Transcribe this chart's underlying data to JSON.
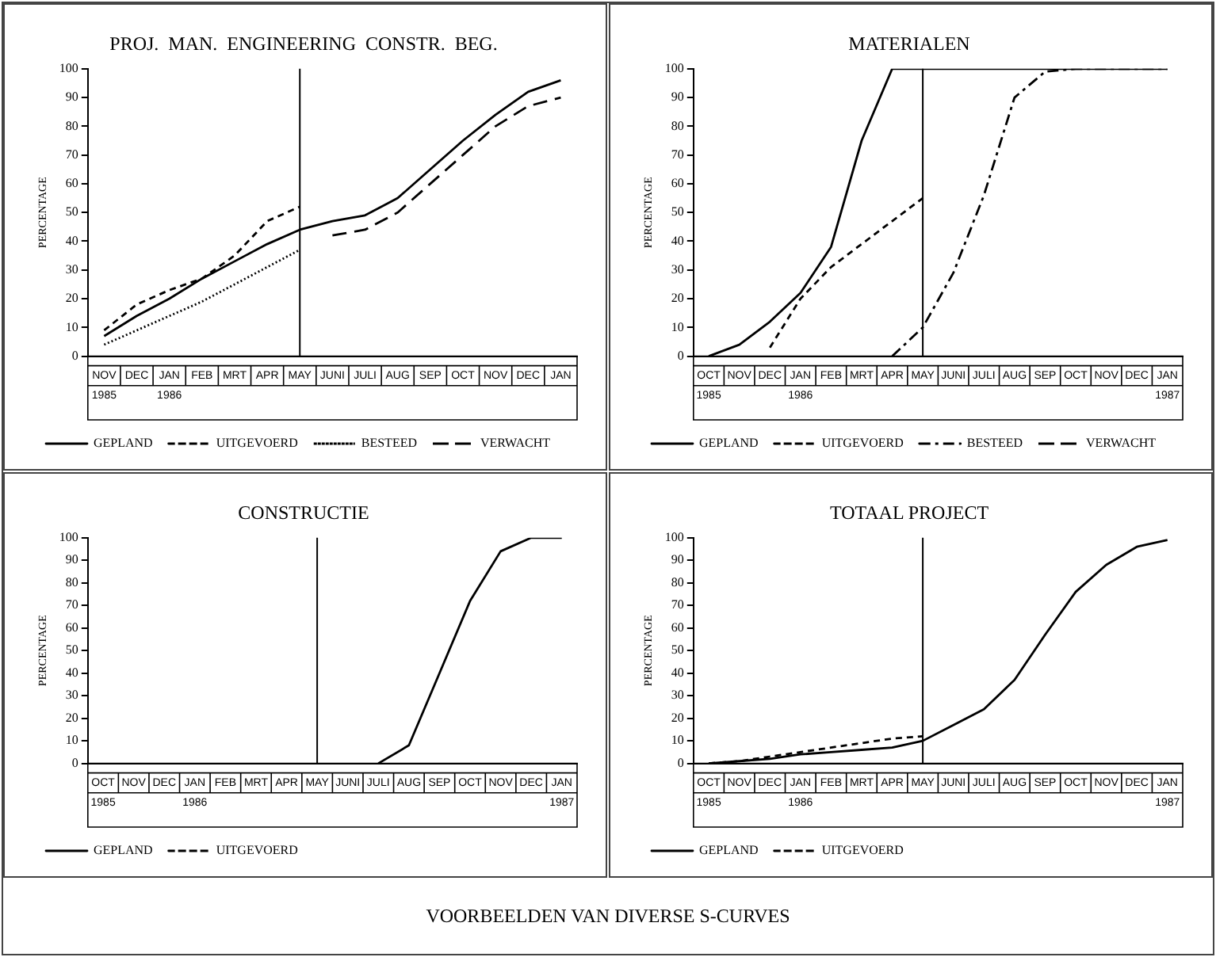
{
  "chart_data": [
    {
      "type": "line",
      "title": "PROJ.  MAN.  ENGINEERING  CONSTR.  BEG.",
      "ylabel": "PERCENTAGE",
      "categories": [
        "NOV\n1985",
        "DEC",
        "JAN\n1986",
        "FEB",
        "MRT",
        "APR",
        "MAY",
        "JUNI",
        "JULI",
        "AUG",
        "SEP",
        "OCT",
        "NOV",
        "DEC",
        "JAN"
      ],
      "ylim": [
        0,
        100
      ],
      "yticks": [
        0,
        10,
        20,
        30,
        40,
        50,
        60,
        70,
        80,
        90,
        100
      ],
      "grid": false,
      "legend": "bottom left",
      "marker": "none",
      "ref_lines": [
        {
          "axis": "x",
          "value": "MAY"
        }
      ],
      "series": [
        {
          "name": "GEPLAND",
          "color": "#000000",
          "line_style": "solid",
          "values": [
            7,
            14,
            20,
            27,
            33,
            39,
            44,
            47,
            49,
            55,
            65,
            75,
            84,
            92,
            96
          ]
        },
        {
          "name": "UITGEVOERD",
          "color": "#000000",
          "line_style": "dashed",
          "values": [
            9,
            18,
            23,
            27,
            35,
            47,
            52,
            null,
            null,
            null,
            null,
            null,
            null,
            null,
            null
          ]
        },
        {
          "name": "BESTEED",
          "color": "#000000",
          "line_style": "dotted",
          "values": [
            4,
            9,
            14,
            19,
            25,
            31,
            37,
            null,
            null,
            null,
            null,
            null,
            null,
            null,
            null
          ]
        },
        {
          "name": "VERWACHT",
          "color": "#000000",
          "line_style": "longdash",
          "values": [
            null,
            null,
            null,
            null,
            null,
            null,
            null,
            42,
            44,
            50,
            60,
            70,
            80,
            87,
            90
          ]
        }
      ]
    },
    {
      "type": "line",
      "title": "MATERIALEN",
      "ylabel": "PERCENTAGE",
      "categories": [
        "OCT\n1985",
        "NOV",
        "DEC",
        "JAN\n1986",
        "FEB",
        "MRT",
        "APR",
        "MAY",
        "JUNI",
        "JULI",
        "AUG",
        "SEP",
        "OCT",
        "NOV",
        "DEC",
        "JAN\n1987"
      ],
      "ylim": [
        0,
        100
      ],
      "yticks": [
        0,
        10,
        20,
        30,
        40,
        50,
        60,
        70,
        80,
        90,
        100
      ],
      "grid": false,
      "legend": "bottom left",
      "marker": "none",
      "ref_lines": [
        {
          "axis": "x",
          "value": "MAY"
        }
      ],
      "series": [
        {
          "name": "GEPLAND",
          "color": "#000000",
          "line_style": "solid",
          "values": [
            0,
            4,
            12,
            22,
            38,
            75,
            100,
            100,
            100,
            100,
            100,
            100,
            100,
            100,
            100,
            100
          ]
        },
        {
          "name": "UITGEVOERD",
          "color": "#000000",
          "line_style": "dashed",
          "values": [
            null,
            null,
            3,
            20,
            31,
            39,
            47,
            55,
            null,
            null,
            null,
            null,
            null,
            null,
            null,
            null
          ]
        },
        {
          "name": "BESTEED",
          "color": "#000000",
          "line_style": "dashdot",
          "values": [
            null,
            null,
            null,
            null,
            null,
            null,
            0,
            10,
            29,
            56,
            90,
            99,
            100,
            100,
            100,
            100
          ]
        },
        {
          "name": "VERWACHT",
          "color": "#000000",
          "line_style": "longdash",
          "values": [
            null,
            null,
            null,
            null,
            null,
            null,
            null,
            null,
            null,
            null,
            null,
            null,
            null,
            null,
            null,
            null
          ]
        }
      ]
    },
    {
      "type": "line",
      "title": "CONSTRUCTIE",
      "ylabel": "PERCENTAGE",
      "categories": [
        "OCT\n1985",
        "NOV",
        "DEC",
        "JAN\n1986",
        "FEB",
        "MRT",
        "APR",
        "MAY",
        "JUNI",
        "JULI",
        "AUG",
        "SEP",
        "OCT",
        "NOV",
        "DEC",
        "JAN\n1987"
      ],
      "ylim": [
        0,
        100
      ],
      "yticks": [
        0,
        10,
        20,
        30,
        40,
        50,
        60,
        70,
        80,
        90,
        100
      ],
      "grid": false,
      "legend": "bottom left",
      "marker": "none",
      "ref_lines": [
        {
          "axis": "x",
          "value": "MAY"
        }
      ],
      "series": [
        {
          "name": "GEPLAND",
          "color": "#000000",
          "line_style": "solid",
          "values": [
            null,
            null,
            null,
            null,
            null,
            null,
            null,
            null,
            null,
            0,
            8,
            40,
            72,
            94,
            100,
            100
          ]
        },
        {
          "name": "UITGEVOERD",
          "color": "#000000",
          "line_style": "dashed",
          "values": [
            null,
            null,
            null,
            null,
            null,
            null,
            null,
            null,
            null,
            null,
            null,
            null,
            null,
            null,
            null,
            null
          ]
        }
      ]
    },
    {
      "type": "line",
      "title": "TOTAAL PROJECT",
      "ylabel": "PERCENTAGE",
      "categories": [
        "OCT\n1985",
        "NOV",
        "DEC",
        "JAN\n1986",
        "FEB",
        "MRT",
        "APR",
        "MAY",
        "JUNI",
        "JULI",
        "AUG",
        "SEP",
        "OCT",
        "NOV",
        "DEC",
        "JAN\n1987"
      ],
      "ylim": [
        0,
        100
      ],
      "yticks": [
        0,
        10,
        20,
        30,
        40,
        50,
        60,
        70,
        80,
        90,
        100
      ],
      "grid": false,
      "legend": "bottom left",
      "marker": "none",
      "ref_lines": [
        {
          "axis": "x",
          "value": "MAY"
        }
      ],
      "annotations": [
        "VOORBEELDEN VAN DIVERSE S-CURVES"
      ],
      "series": [
        {
          "name": "GEPLAND",
          "color": "#000000",
          "line_style": "solid",
          "values": [
            0,
            1,
            2,
            4,
            5,
            6,
            7,
            10,
            17,
            24,
            37,
            57,
            76,
            88,
            96,
            99
          ]
        },
        {
          "name": "UITGEVOERD",
          "color": "#000000",
          "line_style": "dashed",
          "values": [
            0,
            1,
            3,
            5,
            7,
            9,
            11,
            12,
            null,
            null,
            null,
            null,
            null,
            null,
            null,
            null
          ]
        }
      ]
    }
  ]
}
